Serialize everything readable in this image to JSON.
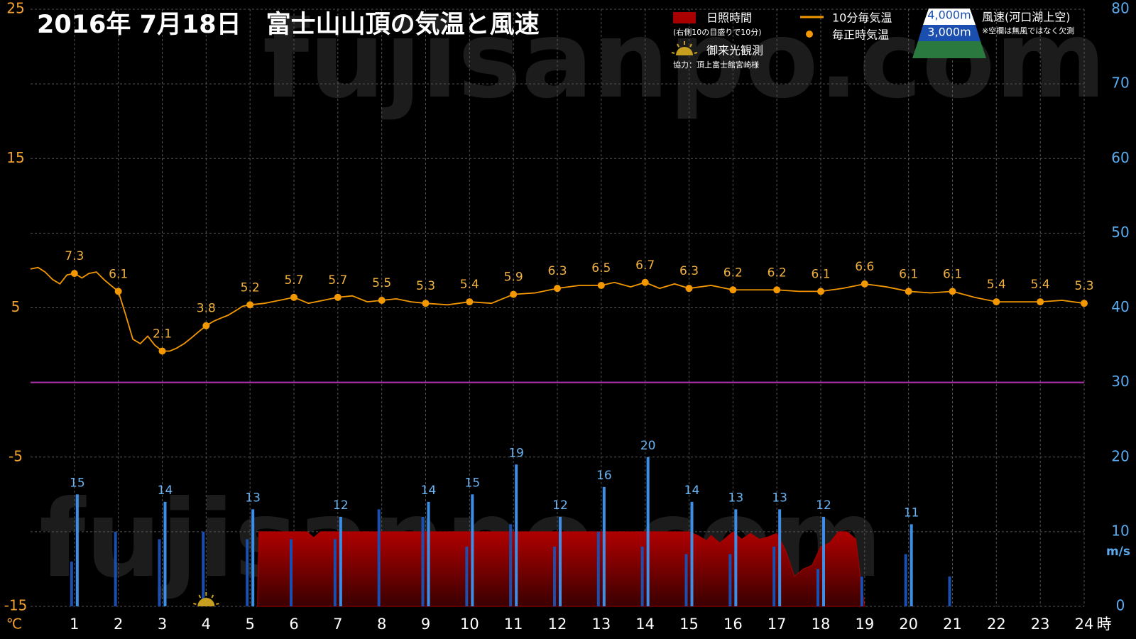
{
  "chart_data": {
    "type": "combo",
    "title": "2016年  7月18日　富士山山頂の気温と風速",
    "watermark": "fujisanpo.com",
    "xlabel": "時",
    "ylabel": "℃",
    "y2label": "m/s",
    "xlim": [
      0,
      24
    ],
    "xticks": [
      1,
      2,
      3,
      4,
      5,
      6,
      7,
      8,
      9,
      10,
      11,
      12,
      13,
      14,
      15,
      16,
      17,
      18,
      19,
      20,
      21,
      22,
      23,
      24
    ],
    "ylim": [
      -15,
      25
    ],
    "yticks": [
      -15,
      -5,
      5,
      15,
      25
    ],
    "y2lim": [
      0,
      80
    ],
    "y2ticks": [
      0,
      10,
      20,
      30,
      40,
      50,
      60,
      70,
      80
    ],
    "grid": true,
    "hline": {
      "value": 0,
      "color": "#b030b0"
    },
    "sunshine_note": "(右側10の目盛りで10分)",
    "wind_title": "風速(河口湖上空)",
    "wind_note": "※空欄は無風ではなく欠測",
    "sunrise": {
      "label": "御来光観測",
      "x": 4,
      "credit": "協力：頂上富士館宮崎様"
    },
    "series": [
      {
        "name": "日照時間",
        "kind": "area",
        "axis": "y2",
        "color": "#a80000",
        "x": [
          5.17,
          5.2,
          6,
          6.3,
          6.45,
          6.6,
          7,
          8,
          9,
          10,
          11,
          12,
          13,
          14,
          15,
          15.2,
          15.4,
          15.5,
          15.7,
          15.9,
          16,
          16.2,
          16.4,
          16.6,
          16.8,
          17,
          17.2,
          17.4,
          17.6,
          17.8,
          18,
          18.2,
          18.4,
          18.6,
          18.8,
          18.9,
          19
        ],
        "values": [
          0,
          10,
          10,
          10,
          9.2,
          10,
          10,
          10,
          10,
          10,
          10,
          10,
          10,
          10,
          10,
          9.5,
          8.8,
          9.5,
          8.5,
          9.5,
          10,
          9,
          9.8,
          9,
          9.3,
          9.8,
          7.5,
          4,
          5,
          5.5,
          8,
          8.5,
          10,
          10,
          9,
          4,
          0
        ]
      },
      {
        "name": "3,000m",
        "kind": "bar",
        "axis": "y2",
        "color": "#1a4fb0",
        "x": [
          1,
          2,
          3,
          4,
          5,
          6,
          7,
          8,
          9,
          10,
          11,
          12,
          13,
          14,
          15,
          16,
          17,
          18,
          19,
          20,
          21
        ],
        "values": [
          6,
          10,
          9,
          10,
          9,
          9,
          9,
          13,
          12,
          8,
          11,
          8,
          10,
          8,
          7,
          7,
          8,
          5,
          4,
          7,
          4
        ]
      },
      {
        "name": "4,000m",
        "kind": "bar",
        "axis": "y2",
        "color": "#3c8ee6",
        "labels": true,
        "x": [
          1,
          3,
          5,
          7,
          9,
          10,
          11,
          12,
          13,
          14,
          15,
          16,
          17,
          18,
          20
        ],
        "values": [
          15,
          14,
          13,
          12,
          14,
          15,
          19,
          12,
          16,
          20,
          14,
          13,
          13,
          12,
          11
        ]
      },
      {
        "name": "10分毎気温",
        "kind": "line",
        "color": "#f39800",
        "x": [
          0,
          0.17,
          0.33,
          0.5,
          0.67,
          0.83,
          1,
          1.17,
          1.33,
          1.5,
          1.67,
          1.83,
          2,
          2.17,
          2.33,
          2.5,
          2.67,
          2.83,
          3,
          3.17,
          3.33,
          3.5,
          3.67,
          3.83,
          4,
          4.17,
          4.33,
          4.5,
          4.67,
          4.83,
          5,
          5.33,
          5.67,
          6,
          6.33,
          6.67,
          7,
          7.33,
          7.67,
          8,
          8.33,
          8.67,
          9,
          9.5,
          10,
          10.5,
          11,
          11.5,
          12,
          12.5,
          13,
          13.3,
          13.67,
          14,
          14.33,
          14.67,
          15,
          15.5,
          16,
          16.5,
          17,
          17.5,
          18,
          18.5,
          19,
          19.5,
          20,
          20.5,
          21,
          21.5,
          22,
          22.5,
          23,
          23.5,
          24
        ],
        "values": [
          7.6,
          7.7,
          7.4,
          6.9,
          6.6,
          7.2,
          7.3,
          7.0,
          7.3,
          7.4,
          6.9,
          6.5,
          6.1,
          4.5,
          2.9,
          2.6,
          3.1,
          2.5,
          2.1,
          2.1,
          2.3,
          2.6,
          3.0,
          3.4,
          3.8,
          4.1,
          4.3,
          4.5,
          4.8,
          5.1,
          5.2,
          5.3,
          5.5,
          5.7,
          5.3,
          5.5,
          5.7,
          5.8,
          5.4,
          5.5,
          5.6,
          5.4,
          5.3,
          5.2,
          5.4,
          5.3,
          5.9,
          6.0,
          6.3,
          6.5,
          6.5,
          6.7,
          6.4,
          6.7,
          6.3,
          6.6,
          6.3,
          6.5,
          6.2,
          6.2,
          6.2,
          6.1,
          6.1,
          6.3,
          6.6,
          6.4,
          6.1,
          6.0,
          6.1,
          5.7,
          5.4,
          5.4,
          5.4,
          5.5,
          5.3
        ]
      },
      {
        "name": "毎正時気温",
        "kind": "points",
        "color": "#f39800",
        "labels": true,
        "x": [
          1,
          2,
          3,
          4,
          5,
          6,
          7,
          8,
          9,
          10,
          11,
          12,
          13,
          14,
          15,
          16,
          17,
          18,
          19,
          20,
          21,
          22,
          23,
          24
        ],
        "values": [
          7.3,
          6.1,
          2.1,
          3.8,
          5.2,
          5.7,
          5.7,
          5.5,
          5.3,
          5.4,
          5.9,
          6.3,
          6.5,
          6.7,
          6.3,
          6.2,
          6.2,
          6.1,
          6.6,
          6.1,
          6.1,
          5.4,
          5.4,
          5.3
        ]
      }
    ]
  }
}
